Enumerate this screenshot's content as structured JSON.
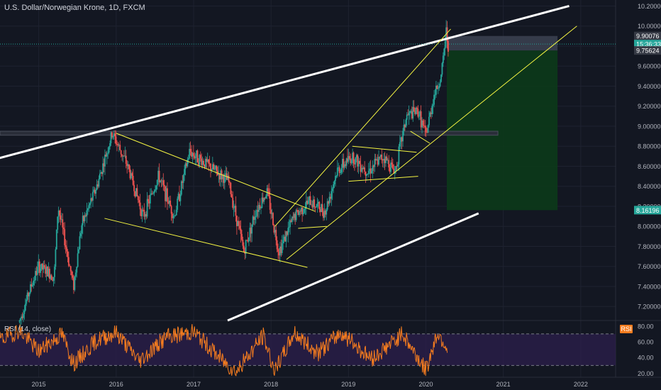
{
  "header": {
    "title": "U.S. Dollar/Norwegian Krone, 1D, FXCM"
  },
  "rsi": {
    "title": "RSI (14, close)",
    "badge": "RSI"
  },
  "colors": {
    "background": "#131722",
    "candle_up": "#26a69a",
    "candle_down": "#ef5350",
    "trendline": "#ffffff",
    "channel": "#f5f542",
    "target_zone": "#0c3a19",
    "stop_zone": "#3a3f4f",
    "rsi_line": "#f57c1f",
    "rsi_band": "#2a1e4a",
    "current_price_tag": "#26a69a",
    "target_tag": "#26a69a"
  },
  "chart_data": [
    {
      "type": "candlestick",
      "x_ticks": [
        "2015",
        "2016",
        "2017",
        "2018",
        "2019",
        "2020",
        "2021",
        "2022"
      ],
      "y_ticks": [
        "7.20000",
        "7.40000",
        "7.60000",
        "7.80000",
        "8.00000",
        "8.20000",
        "8.40000",
        "8.60000",
        "8.80000",
        "9.00000",
        "9.20000",
        "9.40000",
        "9.60000",
        "9.80000",
        "10.00000",
        "10.20000"
      ],
      "ylim": [
        7.06,
        10.26
      ],
      "price_path": [
        {
          "x": 2014.75,
          "y": 7.05
        },
        {
          "x": 2014.9,
          "y": 7.4
        },
        {
          "x": 2015.0,
          "y": 7.6
        },
        {
          "x": 2015.2,
          "y": 7.5
        },
        {
          "x": 2015.25,
          "y": 8.2
        },
        {
          "x": 2015.45,
          "y": 7.4
        },
        {
          "x": 2015.55,
          "y": 8.0
        },
        {
          "x": 2015.75,
          "y": 8.4
        },
        {
          "x": 2015.95,
          "y": 8.93
        },
        {
          "x": 2016.15,
          "y": 8.6
        },
        {
          "x": 2016.35,
          "y": 8.1
        },
        {
          "x": 2016.55,
          "y": 8.5
        },
        {
          "x": 2016.75,
          "y": 8.1
        },
        {
          "x": 2016.95,
          "y": 8.75
        },
        {
          "x": 2017.2,
          "y": 8.6
        },
        {
          "x": 2017.45,
          "y": 8.45
        },
        {
          "x": 2017.65,
          "y": 7.75
        },
        {
          "x": 2017.8,
          "y": 8.15
        },
        {
          "x": 2017.95,
          "y": 8.35
        },
        {
          "x": 2018.1,
          "y": 7.75
        },
        {
          "x": 2018.3,
          "y": 8.1
        },
        {
          "x": 2018.5,
          "y": 8.25
        },
        {
          "x": 2018.7,
          "y": 8.15
        },
        {
          "x": 2018.85,
          "y": 8.55
        },
        {
          "x": 2019.05,
          "y": 8.7
        },
        {
          "x": 2019.25,
          "y": 8.55
        },
        {
          "x": 2019.45,
          "y": 8.7
        },
        {
          "x": 2019.6,
          "y": 8.55
        },
        {
          "x": 2019.75,
          "y": 9.1
        },
        {
          "x": 2019.9,
          "y": 9.15
        },
        {
          "x": 2020.0,
          "y": 8.9
        },
        {
          "x": 2020.1,
          "y": 9.3
        },
        {
          "x": 2020.2,
          "y": 9.5
        },
        {
          "x": 2020.26,
          "y": 9.95
        },
        {
          "x": 2020.3,
          "y": 9.75
        }
      ],
      "price_labels": [
        {
          "label": "9.90076",
          "value": 9.90076,
          "color": "#363a45"
        },
        {
          "label": "15:36:33",
          "value": 9.82,
          "color": "#26a69a"
        },
        {
          "label": "9.75624",
          "value": 9.75624,
          "color": "#363a45"
        },
        {
          "label": "8.16196",
          "value": 8.16196,
          "color": "#26a69a"
        }
      ],
      "zones": {
        "stop": {
          "from": 9.75624,
          "to": 9.90076,
          "x_start": 2020.27,
          "x_end": 2021.7
        },
        "target": {
          "from": 8.16196,
          "to": 9.75624,
          "x_start": 2020.27,
          "x_end": 2021.7
        }
      },
      "drawn_lines": {
        "white_upper": [
          {
            "x": 2014.0,
            "y": 8.58
          },
          {
            "x": 2021.85,
            "y": 10.2
          }
        ],
        "white_lower": [
          {
            "x": 2017.44,
            "y": 7.06
          },
          {
            "x": 2020.68,
            "y": 8.13
          }
        ],
        "yellow": [
          [
            {
              "x": 2016.0,
              "y": 8.93
            },
            {
              "x": 2018.57,
              "y": 8.15
            }
          ],
          [
            {
              "x": 2015.85,
              "y": 8.08
            },
            {
              "x": 2018.47,
              "y": 7.59
            }
          ],
          [
            {
              "x": 2018.05,
              "y": 8.0
            },
            {
              "x": 2020.32,
              "y": 9.97
            }
          ],
          [
            {
              "x": 2018.2,
              "y": 7.67
            },
            {
              "x": 2021.95,
              "y": 10.0
            }
          ],
          [
            {
              "x": 2019.05,
              "y": 8.8
            },
            {
              "x": 2019.88,
              "y": 8.74
            }
          ],
          [
            {
              "x": 2019.0,
              "y": 8.45
            },
            {
              "x": 2019.9,
              "y": 8.5
            }
          ],
          [
            {
              "x": 2018.35,
              "y": 7.98
            },
            {
              "x": 2018.72,
              "y": 8.0
            }
          ],
          [
            {
              "x": 2019.8,
              "y": 8.95
            },
            {
              "x": 2020.05,
              "y": 8.83
            }
          ]
        ]
      },
      "horizontal_band": {
        "from": 8.91,
        "to": 8.95,
        "x_end": 2020.93
      }
    },
    {
      "type": "line",
      "name": "RSI (14, close)",
      "y_ticks": [
        "20.00",
        "40.00",
        "60.00",
        "80.00"
      ],
      "ylim": [
        15,
        87
      ],
      "bands": [
        30,
        70
      ],
      "rsi_path": [
        {
          "x": 2014.5,
          "y": 62
        },
        {
          "x": 2014.75,
          "y": 75
        },
        {
          "x": 2015.0,
          "y": 48
        },
        {
          "x": 2015.3,
          "y": 70
        },
        {
          "x": 2015.45,
          "y": 32
        },
        {
          "x": 2015.75,
          "y": 62
        },
        {
          "x": 2016.0,
          "y": 72
        },
        {
          "x": 2016.3,
          "y": 36
        },
        {
          "x": 2016.65,
          "y": 66
        },
        {
          "x": 2017.0,
          "y": 73
        },
        {
          "x": 2017.4,
          "y": 34
        },
        {
          "x": 2017.55,
          "y": 22
        },
        {
          "x": 2017.9,
          "y": 68
        },
        {
          "x": 2018.05,
          "y": 22
        },
        {
          "x": 2018.3,
          "y": 72
        },
        {
          "x": 2018.6,
          "y": 45
        },
        {
          "x": 2018.9,
          "y": 72
        },
        {
          "x": 2019.3,
          "y": 38
        },
        {
          "x": 2019.7,
          "y": 70
        },
        {
          "x": 2020.0,
          "y": 24
        },
        {
          "x": 2020.15,
          "y": 72
        },
        {
          "x": 2020.28,
          "y": 52
        }
      ]
    }
  ]
}
